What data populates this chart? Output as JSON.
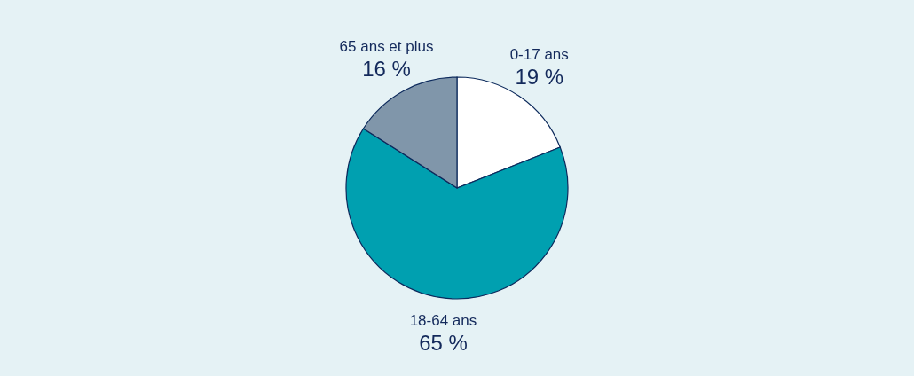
{
  "chart_data": {
    "type": "pie",
    "categories": [
      "0-17 ans",
      "18-64 ans",
      "65 ans et plus"
    ],
    "values": [
      19,
      65,
      16
    ],
    "colors": [
      "#ffffff",
      "#00a0b0",
      "#8096aa"
    ],
    "value_labels": [
      "19 %",
      "65 %",
      "16 %"
    ],
    "legend": false
  }
}
